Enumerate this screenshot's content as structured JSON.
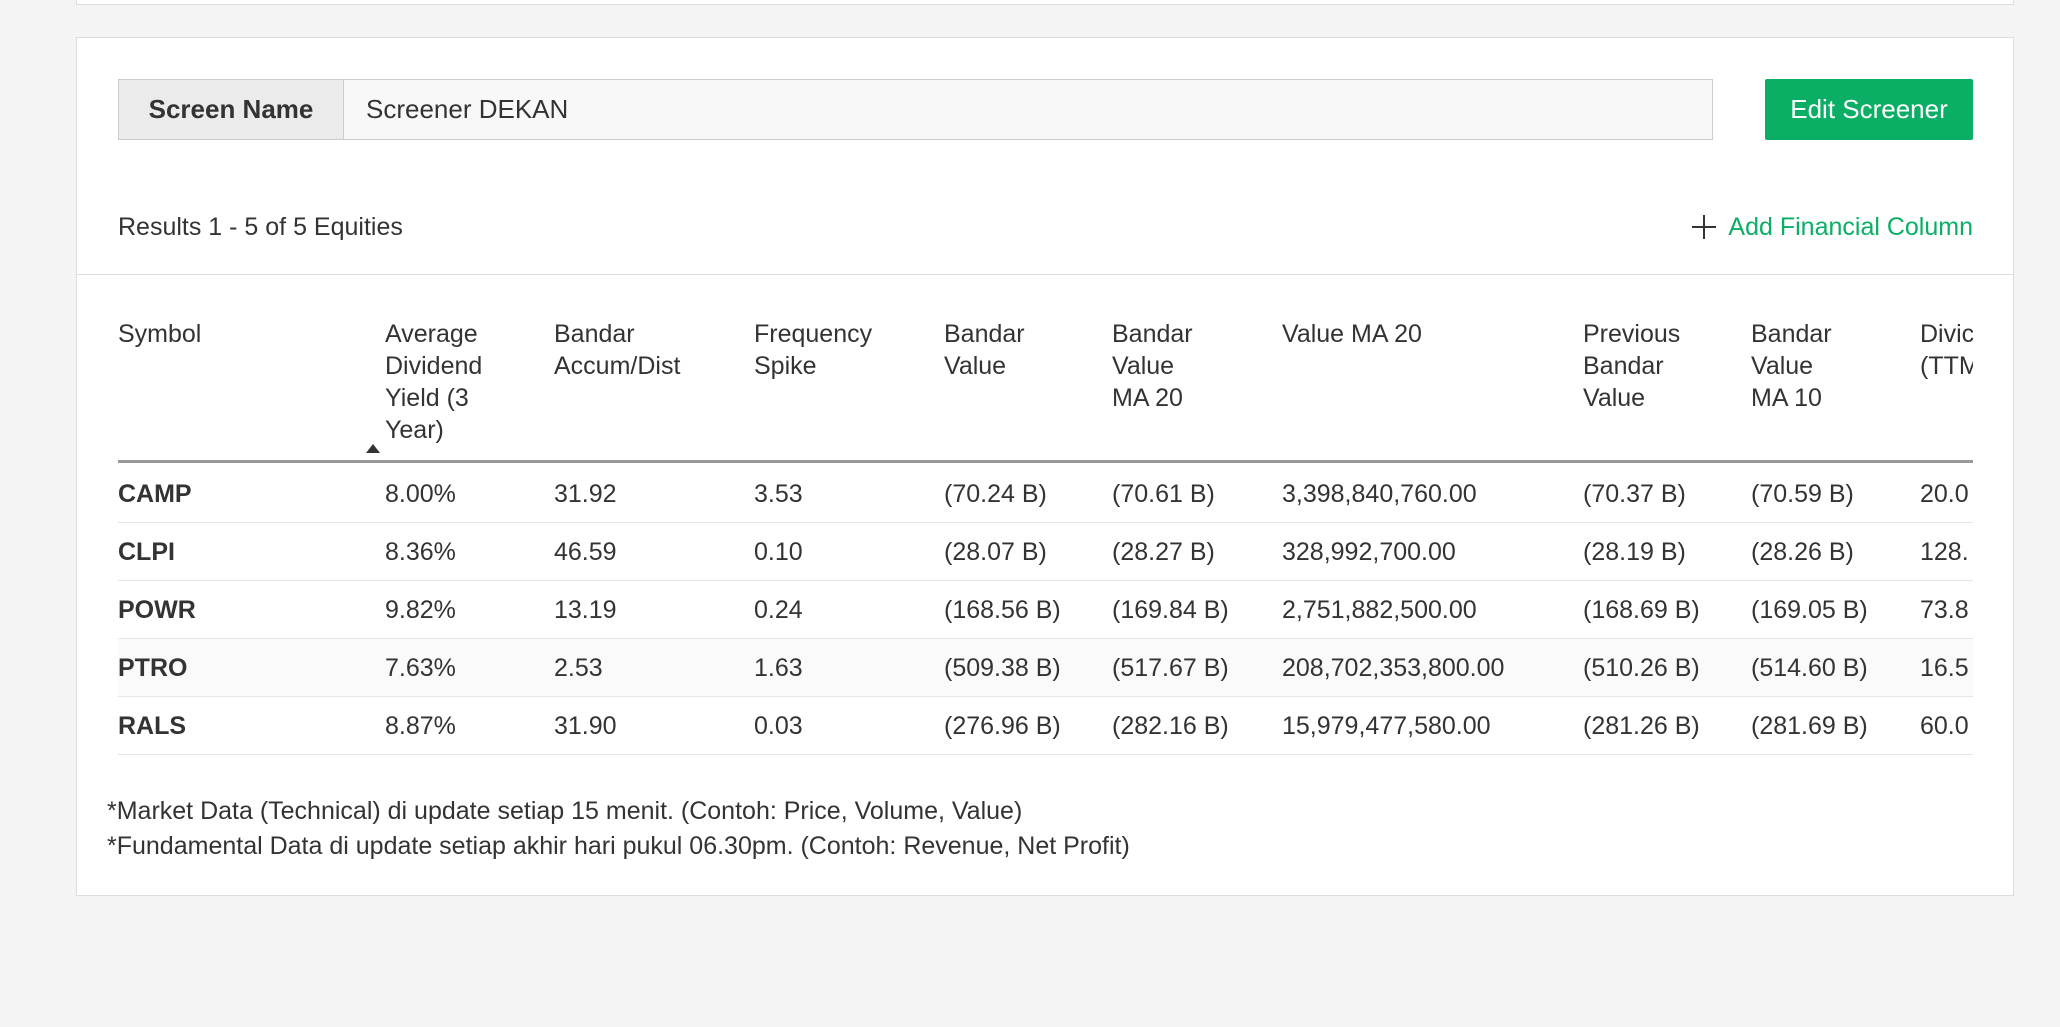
{
  "screen_name": {
    "label": "Screen Name",
    "value": "Screener DEKAN"
  },
  "edit_button": "Edit Screener",
  "results_text": "Results 1 - 5 of 5 Equities",
  "add_column": "Add Financial Column",
  "table": {
    "headers": [
      [
        "Symbol"
      ],
      [
        "Average",
        "Dividend",
        "Yield (3",
        "Year)"
      ],
      [
        "Bandar",
        "Accum/Dist"
      ],
      [
        "Frequency",
        "Spike"
      ],
      [
        "Bandar",
        "Value"
      ],
      [
        "Bandar",
        "Value",
        "MA 20"
      ],
      [
        "Value MA 20"
      ],
      [
        "Previous",
        "Bandar",
        "Value"
      ],
      [
        "Bandar",
        "Value",
        "MA 10"
      ],
      [
        "Divic",
        "(TTM"
      ]
    ],
    "rows": [
      [
        "CAMP",
        "8.00%",
        "31.92",
        "3.53",
        "(70.24 B)",
        "(70.61 B)",
        "3,398,840,760.00",
        "(70.37 B)",
        "(70.59 B)",
        "20.0"
      ],
      [
        "CLPI",
        "8.36%",
        "46.59",
        "0.10",
        "(28.07 B)",
        "(28.27 B)",
        "328,992,700.00",
        "(28.19 B)",
        "(28.26 B)",
        "128."
      ],
      [
        "POWR",
        "9.82%",
        "13.19",
        "0.24",
        "(168.56 B)",
        "(169.84 B)",
        "2,751,882,500.00",
        "(168.69 B)",
        "(169.05 B)",
        "73.8"
      ],
      [
        "PTRO",
        "7.63%",
        "2.53",
        "1.63",
        "(509.38 B)",
        "(517.67 B)",
        "208,702,353,800.00",
        "(510.26 B)",
        "(514.60 B)",
        "16.5"
      ],
      [
        "RALS",
        "8.87%",
        "31.90",
        "0.03",
        "(276.96 B)",
        "(282.16 B)",
        "15,979,477,580.00",
        "(281.26 B)",
        "(281.69 B)",
        "60.0"
      ]
    ]
  },
  "footnotes": [
    "*Market Data (Technical) di update setiap 15 menit. (Contoh: Price, Volume, Value)",
    "*Fundamental Data di update setiap akhir hari pukul 06.30pm. (Contoh: Revenue, Net Profit)"
  ]
}
